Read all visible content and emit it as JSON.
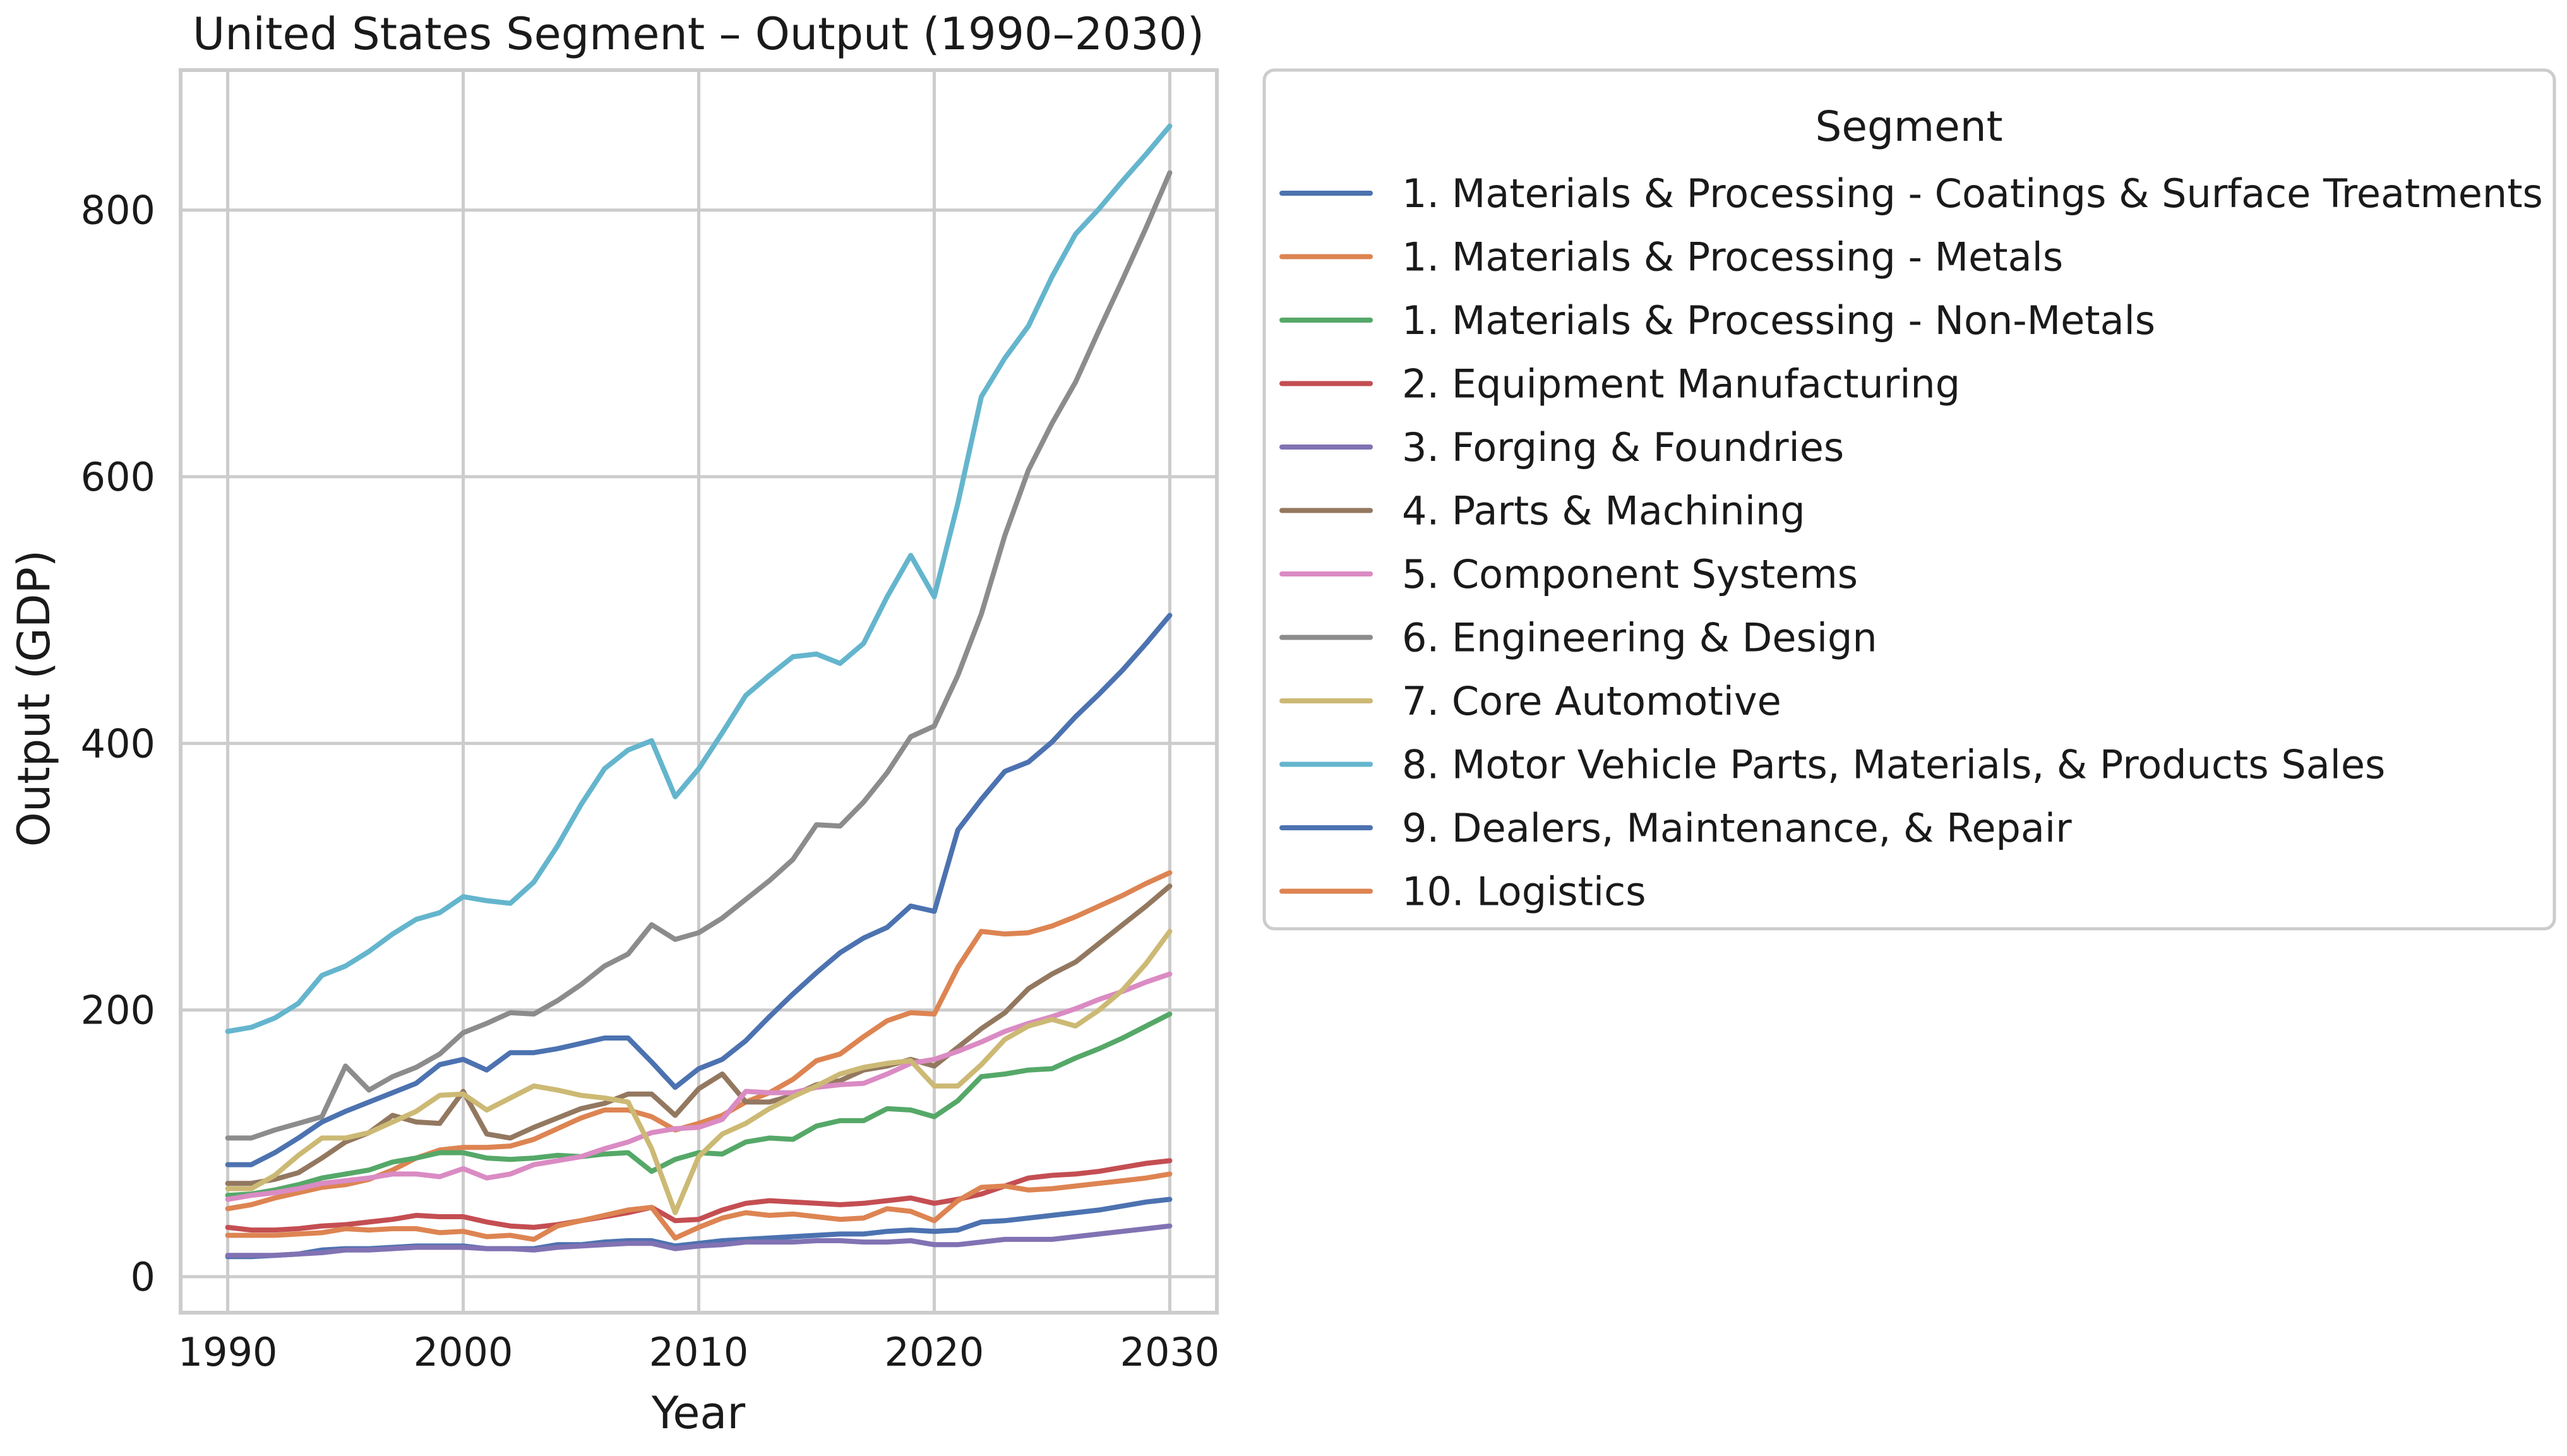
{
  "chart_data": {
    "type": "line",
    "title": "United States Segment – Output (1990–2030)",
    "xlabel": "Year",
    "ylabel": "Output (GDP)",
    "xlim": [
      1988,
      2032
    ],
    "ylim": [
      -27,
      905
    ],
    "xticks": [
      1990,
      2000,
      2010,
      2020,
      2030
    ],
    "yticks": [
      0,
      200,
      400,
      600,
      800
    ],
    "grid": true,
    "legend": {
      "title": "Segment",
      "placement": "outside right, top"
    },
    "x": [
      1990,
      1991,
      1992,
      1993,
      1994,
      1995,
      1996,
      1997,
      1998,
      1999,
      2000,
      2001,
      2002,
      2003,
      2004,
      2005,
      2006,
      2007,
      2008,
      2009,
      2010,
      2011,
      2012,
      2013,
      2014,
      2015,
      2016,
      2017,
      2018,
      2019,
      2020,
      2021,
      2022,
      2023,
      2024,
      2025,
      2026,
      2027,
      2028,
      2029,
      2030
    ],
    "series": [
      {
        "name": "1. Materials & Processing - Coatings & Surface Treatments",
        "color": "#4c72b0",
        "values": [
          15,
          15,
          16,
          17,
          20,
          21,
          21,
          22,
          23,
          23,
          23,
          21,
          21,
          21,
          24,
          24,
          26,
          27,
          27,
          23,
          25,
          27,
          28,
          29,
          30,
          31,
          32,
          32,
          34,
          35,
          34,
          35,
          41,
          42,
          44,
          46,
          48,
          50,
          53,
          56,
          58
        ]
      },
      {
        "name": "1. Materials & Processing - Metals",
        "color": "#dd8452",
        "values": [
          51,
          54,
          59,
          63,
          67,
          69,
          73,
          80,
          89,
          95,
          97,
          97,
          98,
          103,
          111,
          119,
          125,
          125,
          120,
          110,
          115,
          121,
          131,
          138,
          148,
          162,
          167,
          180,
          192,
          198,
          197,
          232,
          259,
          257,
          258,
          263,
          270,
          278,
          286,
          295,
          303
        ]
      },
      {
        "name": "1. Materials & Processing - Non-Metals",
        "color": "#55a868",
        "values": [
          61,
          62,
          65,
          69,
          74,
          77,
          80,
          86,
          89,
          93,
          93,
          89,
          88,
          89,
          91,
          90,
          92,
          93,
          79,
          88,
          93,
          92,
          101,
          104,
          103,
          113,
          117,
          117,
          126,
          125,
          120,
          132,
          150,
          152,
          155,
          156,
          164,
          171,
          179,
          188,
          197
        ]
      },
      {
        "name": "2. Equipment Manufacturing",
        "color": "#c44e52",
        "values": [
          37,
          35,
          35,
          36,
          38,
          39,
          41,
          43,
          46,
          45,
          45,
          41,
          38,
          37,
          39,
          42,
          45,
          48,
          52,
          42,
          43,
          50,
          55,
          57,
          56,
          55,
          54,
          55,
          57,
          59,
          55,
          58,
          62,
          68,
          74,
          76,
          77,
          79,
          82,
          85,
          87
        ]
      },
      {
        "name": "3. Forging & Foundries",
        "color": "#8172b3",
        "values": [
          16,
          16,
          16,
          17,
          18,
          20,
          20,
          21,
          22,
          22,
          22,
          21,
          21,
          20,
          22,
          23,
          24,
          25,
          25,
          21,
          23,
          24,
          26,
          26,
          26,
          27,
          27,
          26,
          26,
          27,
          24,
          24,
          26,
          28,
          28,
          28,
          30,
          32,
          34,
          36,
          38
        ]
      },
      {
        "name": "4. Parts & Machining",
        "color": "#937860",
        "values": [
          70,
          70,
          73,
          78,
          89,
          101,
          108,
          121,
          116,
          115,
          139,
          107,
          104,
          112,
          119,
          126,
          130,
          137,
          137,
          121,
          141,
          152,
          131,
          131,
          136,
          144,
          147,
          155,
          158,
          163,
          158,
          172,
          186,
          198,
          216,
          227,
          236,
          250,
          264,
          278,
          293
        ]
      },
      {
        "name": "5. Component Systems",
        "color": "#da8bc3",
        "values": [
          58,
          61,
          63,
          66,
          70,
          72,
          74,
          77,
          77,
          75,
          81,
          74,
          77,
          84,
          87,
          90,
          96,
          101,
          108,
          111,
          112,
          118,
          139,
          138,
          138,
          142,
          144,
          145,
          152,
          160,
          163,
          169,
          176,
          184,
          190,
          195,
          201,
          208,
          214,
          221,
          227
        ]
      },
      {
        "name": "6. Engineering & Design",
        "color": "#8c8c8c",
        "values": [
          104,
          104,
          110,
          115,
          120,
          158,
          140,
          150,
          157,
          167,
          183,
          190,
          198,
          197,
          207,
          219,
          233,
          242,
          264,
          253,
          258,
          269,
          283,
          297,
          313,
          339,
          338,
          356,
          378,
          405,
          413,
          451,
          497,
          556,
          605,
          640,
          671,
          710,
          748,
          787,
          828
        ]
      },
      {
        "name": "7. Core Automotive",
        "color": "#ccb974",
        "values": [
          66,
          66,
          76,
          91,
          104,
          104,
          108,
          116,
          124,
          136,
          137,
          125,
          134,
          143,
          140,
          136,
          134,
          131,
          96,
          48,
          90,
          107,
          115,
          126,
          135,
          143,
          152,
          157,
          160,
          162,
          143,
          143,
          159,
          178,
          188,
          193,
          188,
          200,
          215,
          235,
          259
        ]
      },
      {
        "name": "8. Motor Vehicle Parts, Materials, & Products Sales",
        "color": "#64b5cd",
        "values": [
          184,
          187,
          194,
          205,
          226,
          233,
          244,
          257,
          268,
          273,
          285,
          282,
          280,
          296,
          323,
          354,
          381,
          395,
          402,
          360,
          381,
          408,
          436,
          451,
          465,
          467,
          460,
          475,
          510,
          541,
          510,
          580,
          660,
          689,
          713,
          750,
          782,
          801,
          822,
          842,
          863
        ]
      },
      {
        "name": "9. Dealers, Maintenance, & Repair",
        "color": "#4c72b0",
        "values": [
          84,
          84,
          93,
          104,
          116,
          124,
          131,
          138,
          145,
          159,
          163,
          155,
          168,
          168,
          171,
          175,
          179,
          179,
          161,
          142,
          156,
          163,
          177,
          195,
          212,
          228,
          243,
          254,
          262,
          278,
          274,
          335,
          358,
          379,
          386,
          401,
          420,
          437,
          455,
          475,
          496
        ]
      },
      {
        "name": "10. Logistics",
        "color": "#dd8452",
        "values": [
          31,
          31,
          31,
          32,
          33,
          36,
          35,
          36,
          36,
          33,
          34,
          30,
          31,
          28,
          38,
          42,
          46,
          50,
          52,
          29,
          37,
          44,
          48,
          46,
          47,
          45,
          43,
          44,
          51,
          49,
          42,
          57,
          67,
          68,
          65,
          66,
          68,
          70,
          72,
          74,
          77
        ]
      }
    ]
  }
}
